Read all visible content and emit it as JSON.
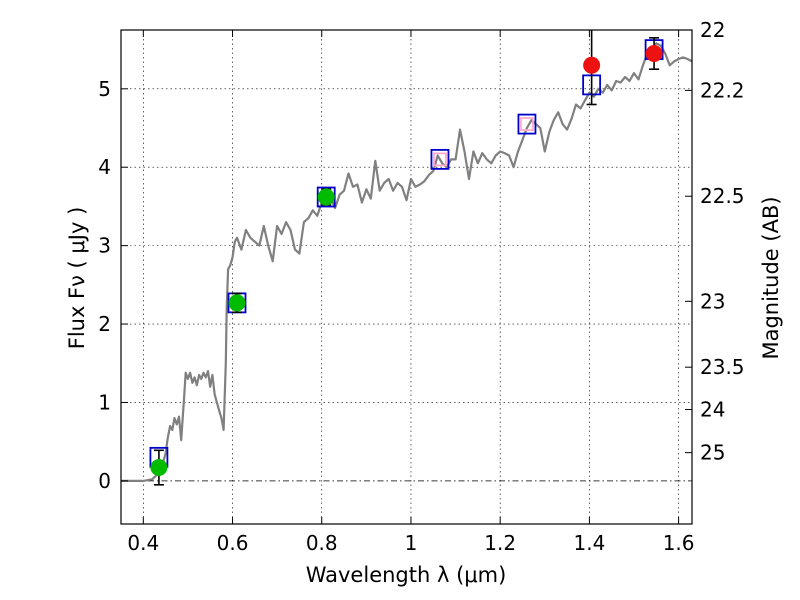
{
  "chart_data": {
    "type": "scatter",
    "xlabel": "Wavelength  λ (μm)",
    "ylabel": "Flux  Fν  ( μJy )",
    "ylabel_right": "Magnitude (AB)",
    "xlim": [
      0.35,
      1.63
    ],
    "ylim": [
      -0.55,
      5.75
    ],
    "x_ticks": [
      0.4,
      0.6,
      0.8,
      1.0,
      1.2,
      1.4,
      1.6
    ],
    "x_tick_labels": [
      "0.4",
      "0.6",
      "0.8",
      "1",
      "1.2",
      "1.4",
      "1.6"
    ],
    "y_ticks": [
      0,
      1,
      2,
      3,
      4,
      5
    ],
    "y_tick_labels": [
      "0",
      "1",
      "2",
      "3",
      "4",
      "5"
    ],
    "right_ticks": [
      {
        "flux": 5.75,
        "label": "22"
      },
      {
        "flux": 4.98,
        "label": "22.2"
      },
      {
        "flux": 3.63,
        "label": "22.5"
      },
      {
        "flux": 2.29,
        "label": "23"
      },
      {
        "flux": 1.45,
        "label": "23.5"
      },
      {
        "flux": 0.91,
        "label": "24"
      },
      {
        "flux": 0.36,
        "label": "25"
      }
    ],
    "grid": true,
    "zero_line": true,
    "colors": {
      "model": "#808080",
      "model_points": "#0000cc",
      "detections_optical": "#00bb00",
      "detections_nir": "#ee1111",
      "nondetection": "#ffaacc",
      "errorbars": "#000000"
    },
    "series": [
      {
        "type": "line",
        "x": [
          0.35,
          0.38,
          0.4,
          0.42,
          0.435,
          0.44,
          0.445,
          0.45,
          0.455,
          0.46,
          0.465,
          0.47,
          0.475,
          0.48,
          0.485,
          0.49,
          0.495,
          0.5,
          0.505,
          0.51,
          0.515,
          0.52,
          0.525,
          0.53,
          0.535,
          0.54,
          0.545,
          0.55,
          0.555,
          0.56,
          0.565,
          0.57,
          0.575,
          0.58,
          0.585,
          0.587,
          0.59,
          0.595,
          0.6,
          0.605,
          0.61,
          0.62,
          0.63,
          0.64,
          0.65,
          0.66,
          0.67,
          0.68,
          0.69,
          0.7,
          0.71,
          0.72,
          0.73,
          0.74,
          0.75,
          0.76,
          0.77,
          0.78,
          0.79,
          0.8,
          0.81,
          0.82,
          0.83,
          0.84,
          0.85,
          0.86,
          0.87,
          0.88,
          0.89,
          0.9,
          0.91,
          0.92,
          0.93,
          0.94,
          0.95,
          0.96,
          0.97,
          0.98,
          0.99,
          1.0,
          1.01,
          1.02,
          1.03,
          1.04,
          1.05,
          1.06,
          1.07,
          1.08,
          1.09,
          1.1,
          1.11,
          1.12,
          1.13,
          1.14,
          1.15,
          1.16,
          1.17,
          1.18,
          1.19,
          1.2,
          1.21,
          1.22,
          1.23,
          1.24,
          1.25,
          1.26,
          1.27,
          1.28,
          1.29,
          1.3,
          1.31,
          1.32,
          1.33,
          1.34,
          1.35,
          1.36,
          1.37,
          1.38,
          1.39,
          1.4,
          1.41,
          1.42,
          1.43,
          1.44,
          1.45,
          1.46,
          1.47,
          1.48,
          1.49,
          1.5,
          1.51,
          1.52,
          1.53,
          1.54,
          1.55,
          1.56,
          1.57,
          1.58,
          1.59,
          1.6,
          1.61,
          1.62,
          1.63
        ],
        "y": [
          0.0,
          0.0,
          0.0,
          0.02,
          0.1,
          0.15,
          0.25,
          0.35,
          0.55,
          0.7,
          0.65,
          0.8,
          0.72,
          0.82,
          0.52,
          0.95,
          1.38,
          1.3,
          1.38,
          1.25,
          1.32,
          1.22,
          1.35,
          1.3,
          1.38,
          1.32,
          1.4,
          1.2,
          1.35,
          1.1,
          1.0,
          0.9,
          0.8,
          0.65,
          1.5,
          2.2,
          2.7,
          2.75,
          2.85,
          3.05,
          3.1,
          2.95,
          3.2,
          3.1,
          3.05,
          3.0,
          3.25,
          3.0,
          2.8,
          3.25,
          3.15,
          3.3,
          3.2,
          2.95,
          2.9,
          3.3,
          3.35,
          3.45,
          3.38,
          3.55,
          3.62,
          3.6,
          3.48,
          3.65,
          3.7,
          3.92,
          3.75,
          3.78,
          3.55,
          3.72,
          3.6,
          4.08,
          3.7,
          3.8,
          3.85,
          3.7,
          3.8,
          3.75,
          3.58,
          3.85,
          3.75,
          3.78,
          3.82,
          3.9,
          3.95,
          4.15,
          4.05,
          4.0,
          4.1,
          4.1,
          4.48,
          4.2,
          3.85,
          4.2,
          4.05,
          4.18,
          4.1,
          4.05,
          4.15,
          4.2,
          4.18,
          4.15,
          4.0,
          4.2,
          4.35,
          4.5,
          4.6,
          4.55,
          4.5,
          4.2,
          4.45,
          4.6,
          4.7,
          4.55,
          4.48,
          4.62,
          4.8,
          4.75,
          4.85,
          4.95,
          4.9,
          5.0,
          4.95,
          5.05,
          4.98,
          5.1,
          5.08,
          5.15,
          5.1,
          5.2,
          5.12,
          5.3,
          5.45,
          5.5,
          5.58,
          5.55,
          5.45,
          5.3,
          5.35,
          5.38,
          5.4,
          5.38,
          5.35
        ]
      },
      {
        "name": "",
        "type": "model-box",
        "x": [
          0.435,
          0.61,
          0.81,
          1.065,
          1.26,
          1.405,
          1.545
        ],
        "y": [
          0.3,
          2.27,
          3.62,
          4.1,
          4.55,
          5.05,
          5.5
        ]
      },
      {
        "type": "nondetection-box",
        "x": [
          1.065,
          1.26
        ],
        "y": [
          4.1,
          4.55
        ]
      },
      {
        "type": "detection",
        "color": "optical",
        "x": [
          0.435,
          0.61,
          0.81
        ],
        "y": [
          0.17,
          2.27,
          3.62
        ],
        "err": [
          0.22,
          0.12,
          0.1
        ]
      },
      {
        "type": "detection",
        "color": "nir",
        "x": [
          1.405,
          1.545
        ],
        "y": [
          5.3,
          5.45
        ],
        "err": [
          0.5,
          0.2
        ]
      }
    ]
  }
}
